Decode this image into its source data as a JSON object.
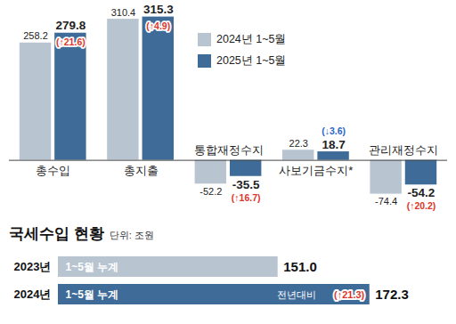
{
  "chart_data": [
    {
      "type": "bar",
      "categories": [
        "총수입",
        "총지출",
        "통합재정수지",
        "사보기금수지*",
        "관리재정수지"
      ],
      "series": [
        {
          "name": "2024년 1~5월",
          "color": "#b8c5d1",
          "values": [
            258.2,
            310.4,
            -52.2,
            22.3,
            -74.4
          ]
        },
        {
          "name": "2025년 1~5월",
          "color": "#3f6b98",
          "values": [
            279.8,
            315.3,
            -35.5,
            18.7,
            -54.2
          ]
        }
      ],
      "changes": [
        21.6,
        4.9,
        16.7,
        -3.6,
        20.2
      ],
      "change_labels": [
        "(↑21.6)",
        "(↑4.9)",
        "(↑16.7)",
        "(↓3.6)",
        "(↑20.2)"
      ],
      "ylim": [
        -130,
        340
      ],
      "yticks": [],
      "tick_labels": "x",
      "data_labels": true,
      "legend": "top"
    },
    {
      "type": "bar",
      "orientation": "horizontal",
      "title": "국세수입 현황",
      "subtitle": "단위: 조원",
      "categories": [
        "2023년",
        "2024년"
      ],
      "values": [
        151.0,
        172.3
      ],
      "value_labels": [
        "151.0",
        "172.3"
      ],
      "bar_labels": [
        "1~5월 누계",
        "1~5월 누계"
      ],
      "changes": [
        null,
        21.3
      ],
      "change_labels": [
        null,
        "(↑21.3)"
      ],
      "change_note": "전년대비",
      "colors": [
        "#b8c5d1",
        "#3f6b98"
      ],
      "xlim": [
        100,
        180
      ],
      "xticks": [],
      "tick_labels": "y",
      "data_labels": true
    }
  ]
}
